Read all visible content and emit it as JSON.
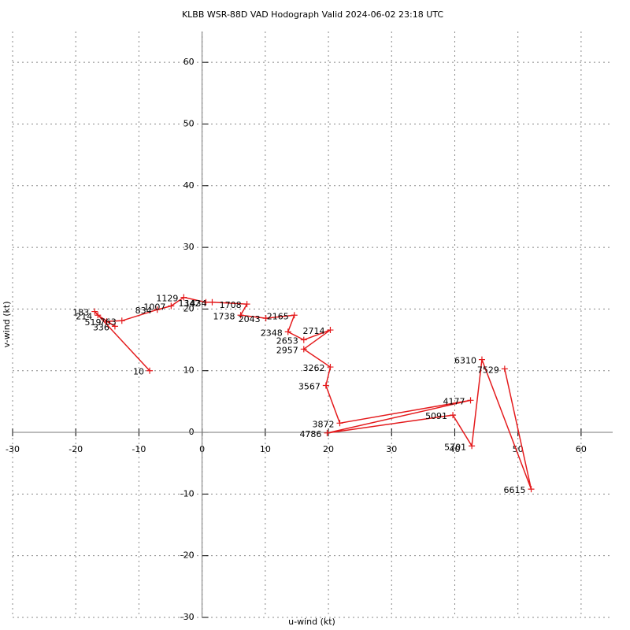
{
  "chart_data": {
    "type": "line",
    "title": "KLBB WSR-88D VAD Hodograph Valid 2024-06-02 23:18 UTC",
    "xlabel": "u-wind (kt)",
    "ylabel": "v-wind (kt)",
    "x": [
      -8.3,
      -17,
      -16.5,
      -13.8,
      -15.1,
      -12.7,
      -7.1,
      -4.9,
      -2.9,
      0.6,
      1.6,
      7.1,
      6.1,
      10.1,
      14.6,
      13.6,
      16.1,
      20.3,
      16.1,
      20.3,
      19.6,
      21.8,
      42.5,
      19.8,
      39.7,
      42.7,
      44.3,
      52.1,
      47.9
    ],
    "labels": [
      "10",
      "183",
      "214",
      "336",
      "519",
      "763",
      "834",
      "1007",
      "1129",
      "1342",
      "1434",
      "1708",
      "1738",
      "2043",
      "2165",
      "2348",
      "2653",
      "2714",
      "2957",
      "3262",
      "3567",
      "3872",
      "4177",
      "4786",
      "5091",
      "5701",
      "6310",
      "6615",
      "7529"
    ],
    "series": [
      {
        "name": "v-wind",
        "color": "#e41a1c",
        "values": [
          10.0,
          19.6,
          19.0,
          17.2,
          18.0,
          18.1,
          19.9,
          20.5,
          21.9,
          21.1,
          21.1,
          20.8,
          19.0,
          18.5,
          19.0,
          16.3,
          15.0,
          16.6,
          13.5,
          10.6,
          7.6,
          1.5,
          5.2,
          -0.1,
          2.8,
          -2.2,
          11.8,
          -9.2,
          10.3
        ]
      }
    ],
    "xlim": [
      -30,
      65
    ],
    "ylim": [
      -30,
      65
    ],
    "xticks": [
      -30,
      -20,
      -10,
      0,
      10,
      20,
      30,
      40,
      50,
      60
    ],
    "yticks": [
      -30,
      -20,
      -10,
      0,
      10,
      20,
      30,
      40,
      50,
      60
    ],
    "grid": true
  }
}
